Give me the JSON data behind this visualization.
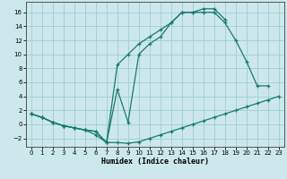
{
  "xlabel": "Humidex (Indice chaleur)",
  "background_color": "#cce8ec",
  "grid_color": "#9ecdd4",
  "line_color": "#1a7a6e",
  "xlim": [
    -0.5,
    23.5
  ],
  "ylim": [
    -3.2,
    17.5
  ],
  "xticks": [
    0,
    1,
    2,
    3,
    4,
    5,
    6,
    7,
    8,
    9,
    10,
    11,
    12,
    13,
    14,
    15,
    16,
    17,
    18,
    19,
    20,
    21,
    22,
    23
  ],
  "yticks": [
    -2,
    0,
    2,
    4,
    6,
    8,
    10,
    12,
    14,
    16
  ],
  "line1": {
    "x": [
      0,
      1,
      2,
      3,
      4,
      5,
      6,
      7,
      8,
      9,
      10,
      11,
      12,
      13,
      14,
      15,
      16,
      17,
      18,
      19,
      20,
      21,
      22,
      23
    ],
    "y": [
      1.5,
      1.0,
      0.3,
      -0.2,
      -0.5,
      -0.8,
      -1.5,
      -2.6,
      -2.6,
      -2.7,
      -2.5,
      -2.0,
      -1.5,
      -1.0,
      -0.5,
      0.0,
      0.5,
      1.0,
      1.5,
      2.0,
      2.5,
      3.0,
      3.5,
      4.0
    ]
  },
  "line2": {
    "x": [
      0,
      1,
      2,
      3,
      4,
      5,
      6,
      7,
      8,
      9,
      10,
      11,
      12,
      13,
      14,
      15,
      16,
      17,
      18,
      19,
      20,
      21,
      22
    ],
    "y": [
      1.5,
      1.0,
      0.3,
      -0.2,
      -0.5,
      -0.8,
      -1.0,
      -2.6,
      5.0,
      0.3,
      10.0,
      11.5,
      12.5,
      14.5,
      16.0,
      16.0,
      16.0,
      16.0,
      14.5,
      12.0,
      9.0,
      5.5,
      5.5
    ]
  },
  "line3": {
    "x": [
      0,
      1,
      2,
      3,
      4,
      5,
      6,
      7,
      8,
      9,
      10,
      11,
      12,
      13,
      14,
      15,
      16,
      17,
      18
    ],
    "y": [
      1.5,
      1.0,
      0.3,
      -0.2,
      -0.5,
      -0.8,
      -1.0,
      -2.6,
      8.5,
      10.0,
      11.5,
      12.5,
      13.5,
      14.5,
      16.0,
      16.0,
      16.5,
      16.5,
      15.0
    ]
  }
}
